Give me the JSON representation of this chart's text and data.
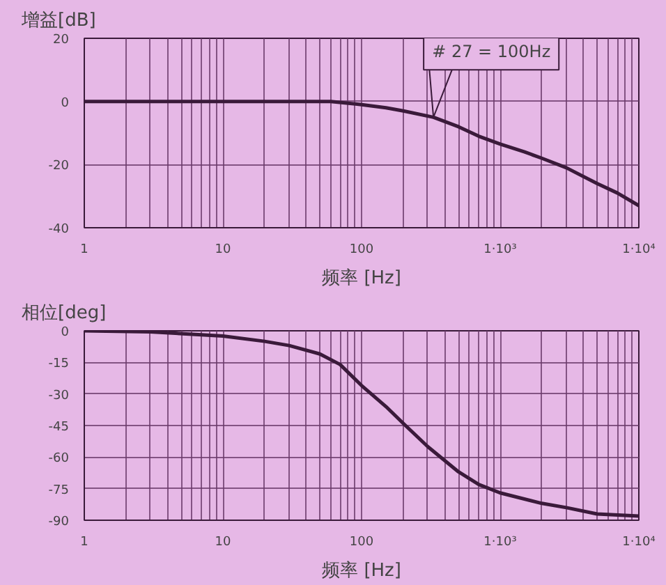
{
  "chart_data": [
    {
      "type": "line",
      "ylabel": "增益[dB]",
      "xlabel": "频率 [Hz]",
      "log": "x",
      "grid": true,
      "line_style": "solid",
      "marker": "none",
      "x": [
        1,
        10,
        60,
        100,
        150,
        200,
        330,
        500,
        700,
        1000,
        1500,
        2000,
        3000,
        5000,
        7000,
        10000
      ],
      "series": [
        {
          "color": "#3a1a3a",
          "values": [
            0,
            0,
            0,
            -1,
            -2,
            -3,
            -5,
            -8,
            -11,
            -13.5,
            -16,
            -18,
            -21,
            -26,
            -29,
            -33
          ]
        }
      ],
      "xlim": [
        1,
        10000
      ],
      "ylim": [
        -40,
        20
      ],
      "yticks": [
        -40,
        -20,
        0,
        20
      ],
      "xticks": [
        1,
        {
          "value": 2,
          "label": null
        },
        {
          "value": 3,
          "label": null
        },
        {
          "value": 4,
          "label": null
        },
        {
          "value": 5,
          "label": null
        },
        {
          "value": 6,
          "label": null
        },
        {
          "value": 7,
          "label": null
        },
        {
          "value": 8,
          "label": null
        },
        {
          "value": 9,
          "label": null
        },
        10,
        {
          "value": 20,
          "label": null
        },
        {
          "value": 30,
          "label": null
        },
        {
          "value": 40,
          "label": null
        },
        {
          "value": 50,
          "label": null
        },
        {
          "value": 60,
          "label": null
        },
        {
          "value": 70,
          "label": null
        },
        {
          "value": 80,
          "label": null
        },
        {
          "value": 90,
          "label": null
        },
        100,
        {
          "value": 200,
          "label": null
        },
        {
          "value": 300,
          "label": null
        },
        {
          "value": 400,
          "label": null
        },
        {
          "value": 500,
          "label": null
        },
        {
          "value": 600,
          "label": null
        },
        {
          "value": 700,
          "label": null
        },
        {
          "value": 800,
          "label": null
        },
        {
          "value": 900,
          "label": null
        },
        {
          "value": 1000,
          "label": "1·10³"
        },
        {
          "value": 2000,
          "label": null
        },
        {
          "value": 3000,
          "label": null
        },
        {
          "value": 4000,
          "label": null
        },
        {
          "value": 5000,
          "label": null
        },
        {
          "value": 6000,
          "label": null
        },
        {
          "value": 7000,
          "label": null
        },
        {
          "value": 8000,
          "label": null
        },
        {
          "value": 9000,
          "label": null
        },
        {
          "value": 10000,
          "label": "1·10⁴"
        }
      ],
      "annotations": [
        {
          "text": "# 27 = 100Hz",
          "x": 330,
          "y": -5
        }
      ]
    },
    {
      "type": "line",
      "ylabel": "相位[deg]",
      "xlabel": "频率 [Hz]",
      "log": "x",
      "grid": true,
      "line_style": "solid",
      "marker": "none",
      "x": [
        1,
        3,
        10,
        20,
        30,
        50,
        70,
        100,
        150,
        200,
        300,
        500,
        700,
        1000,
        2000,
        3000,
        5000,
        10000
      ],
      "series": [
        {
          "color": "#3a1a3a",
          "values": [
            0,
            -0.5,
            -2.5,
            -5,
            -7,
            -11,
            -16,
            -26,
            -36,
            -44,
            -55,
            -67,
            -73,
            -77,
            -82,
            -84,
            -87,
            -88
          ]
        }
      ],
      "xlim": [
        1,
        10000
      ],
      "ylim": [
        -90,
        0
      ],
      "yticks": [
        -90,
        -75,
        -60,
        -45,
        -30,
        -15,
        0
      ],
      "xticks": [
        1,
        {
          "value": 2,
          "label": null
        },
        {
          "value": 3,
          "label": null
        },
        {
          "value": 4,
          "label": null
        },
        {
          "value": 5,
          "label": null
        },
        {
          "value": 6,
          "label": null
        },
        {
          "value": 7,
          "label": null
        },
        {
          "value": 8,
          "label": null
        },
        {
          "value": 9,
          "label": null
        },
        10,
        {
          "value": 20,
          "label": null
        },
        {
          "value": 30,
          "label": null
        },
        {
          "value": 40,
          "label": null
        },
        {
          "value": 50,
          "label": null
        },
        {
          "value": 60,
          "label": null
        },
        {
          "value": 70,
          "label": null
        },
        {
          "value": 80,
          "label": null
        },
        {
          "value": 90,
          "label": null
        },
        100,
        {
          "value": 200,
          "label": null
        },
        {
          "value": 300,
          "label": null
        },
        {
          "value": 400,
          "label": null
        },
        {
          "value": 500,
          "label": null
        },
        {
          "value": 600,
          "label": null
        },
        {
          "value": 700,
          "label": null
        },
        {
          "value": 800,
          "label": null
        },
        {
          "value": 900,
          "label": null
        },
        {
          "value": 1000,
          "label": "1·10³"
        },
        {
          "value": 2000,
          "label": null
        },
        {
          "value": 3000,
          "label": null
        },
        {
          "value": 4000,
          "label": null
        },
        {
          "value": 5000,
          "label": null
        },
        {
          "value": 6000,
          "label": null
        },
        {
          "value": 7000,
          "label": null
        },
        {
          "value": 8000,
          "label": null
        },
        {
          "value": 9000,
          "label": null
        },
        {
          "value": 10000,
          "label": "1·10⁴"
        }
      ]
    }
  ]
}
